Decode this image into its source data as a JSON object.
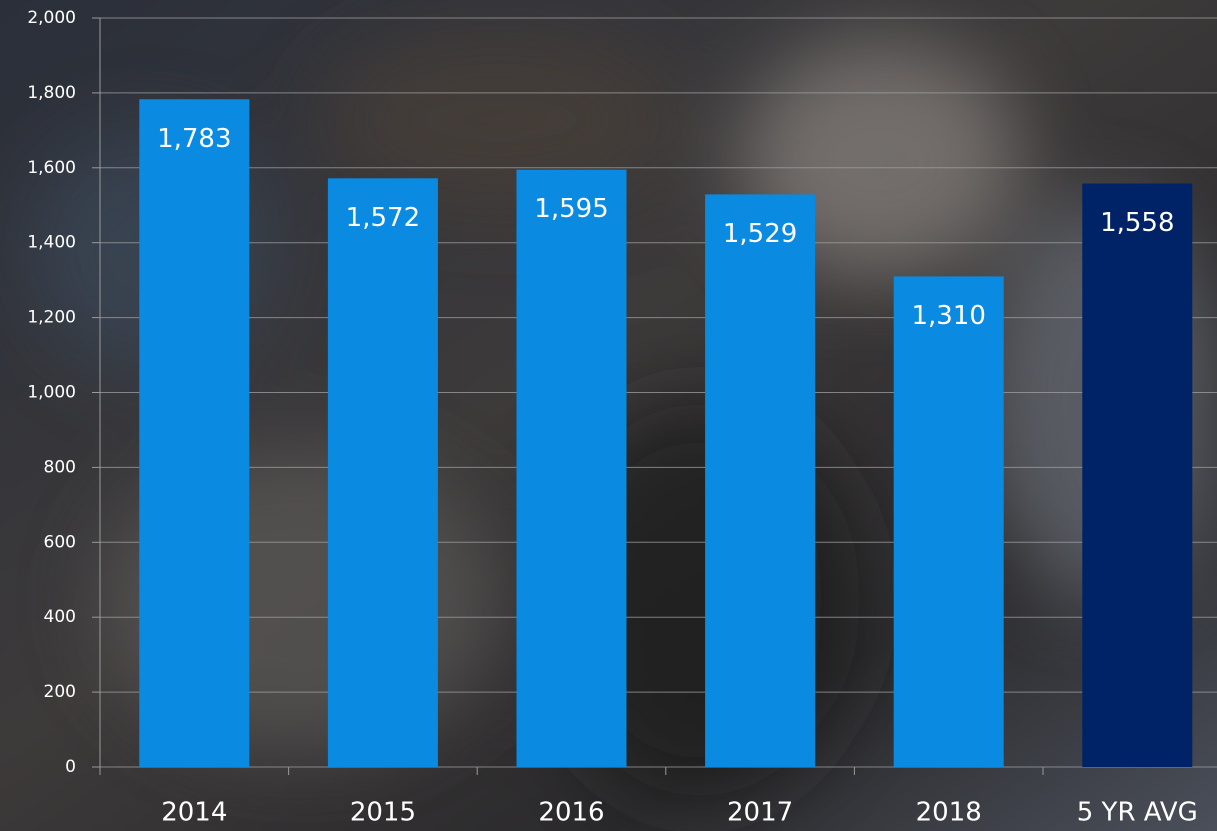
{
  "chart_data": {
    "type": "bar",
    "categories": [
      "2014",
      "2015",
      "2016",
      "2017",
      "2018",
      "5 YR AVG"
    ],
    "values": [
      1783,
      1572,
      1595,
      1529,
      1310,
      1558
    ],
    "value_labels": [
      "1,783",
      "1,572",
      "1,595",
      "1,529",
      "1,310",
      "1,558"
    ],
    "colors": [
      "#0b8ae2",
      "#0b8ae2",
      "#0b8ae2",
      "#0b8ae2",
      "#0b8ae2",
      "#002266"
    ],
    "ylim": [
      0,
      2000
    ],
    "yticks": [
      0,
      200,
      400,
      600,
      800,
      {
        "value": 1000,
        "label": "1,000"
      },
      {
        "value": 1200,
        "label": "1,200"
      },
      {
        "value": 1400,
        "label": "1,400"
      },
      {
        "value": 1600,
        "label": "1,600"
      },
      {
        "value": 1800,
        "label": "1,800"
      },
      {
        "value": 2000,
        "label": "2,000"
      }
    ],
    "grid": true
  }
}
